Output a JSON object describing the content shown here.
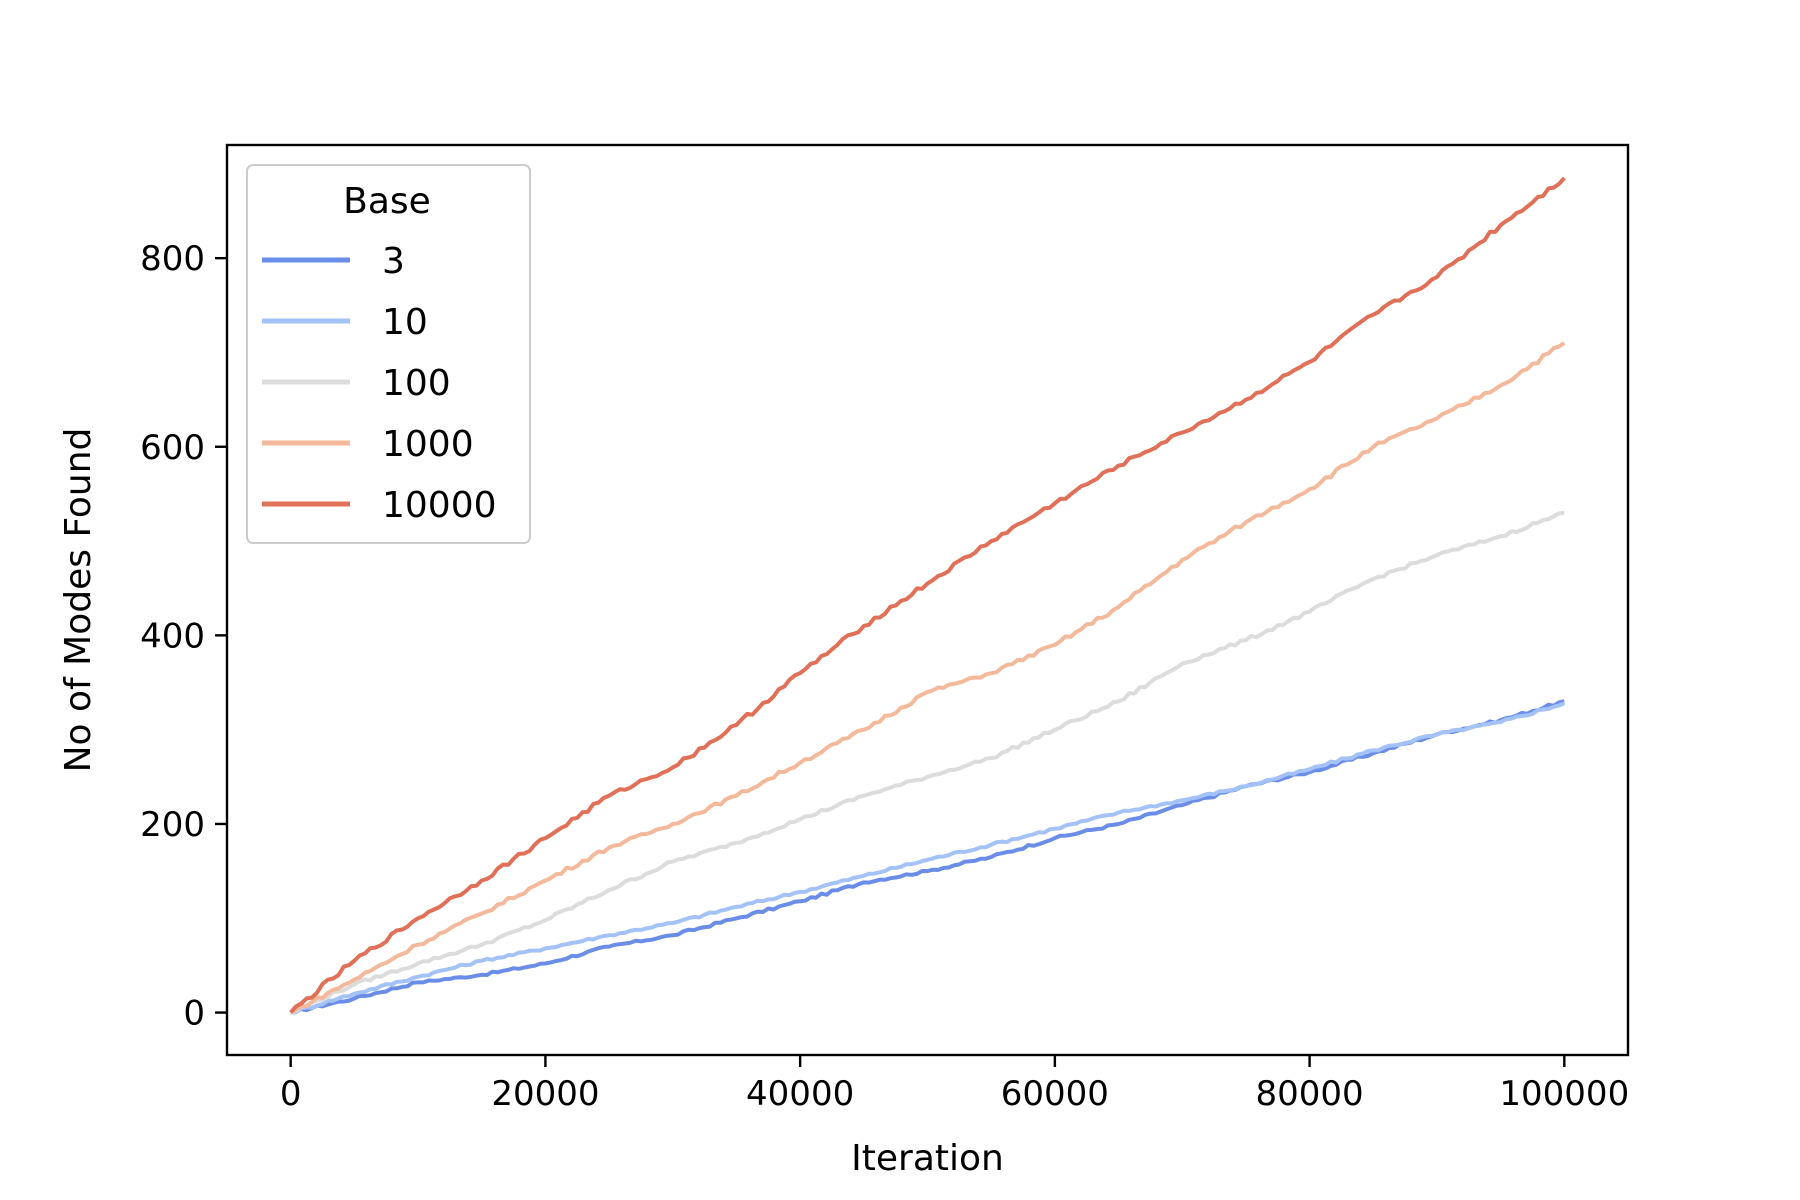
{
  "chart_data": {
    "type": "line",
    "title": "",
    "xlabel": "Iteration",
    "ylabel": "No of Modes Found",
    "xlim": [
      -5000,
      105000
    ],
    "ylim": [
      -45,
      920
    ],
    "xticks": [
      0,
      20000,
      40000,
      60000,
      80000,
      100000
    ],
    "yticks": [
      0,
      200,
      400,
      600,
      800
    ],
    "grid": false,
    "legend": {
      "title": "Base",
      "placement": "top-left"
    },
    "series": [
      {
        "name": "3",
        "color": "#6a8ee8",
        "x": [
          0,
          5000,
          10000,
          15000,
          20000,
          25000,
          30000,
          35000,
          40000,
          45000,
          50000,
          55000,
          60000,
          65000,
          70000,
          75000,
          80000,
          85000,
          90000,
          95000,
          100000
        ],
        "y": [
          0,
          15,
          32,
          40,
          52,
          70,
          82,
          100,
          118,
          138,
          150,
          165,
          185,
          200,
          220,
          240,
          255,
          275,
          295,
          310,
          330
        ]
      },
      {
        "name": "10",
        "color": "#a3c2f7",
        "x": [
          0,
          5000,
          10000,
          15000,
          20000,
          25000,
          30000,
          35000,
          40000,
          45000,
          50000,
          55000,
          60000,
          65000,
          70000,
          75000,
          80000,
          85000,
          90000,
          95000,
          100000
        ],
        "y": [
          0,
          20,
          38,
          55,
          68,
          82,
          95,
          112,
          128,
          145,
          162,
          178,
          195,
          212,
          225,
          240,
          258,
          278,
          295,
          308,
          328
        ]
      },
      {
        "name": "100",
        "color": "#dcdcdc",
        "x": [
          0,
          5000,
          10000,
          15000,
          20000,
          25000,
          30000,
          35000,
          40000,
          45000,
          50000,
          55000,
          60000,
          65000,
          70000,
          75000,
          80000,
          85000,
          90000,
          95000,
          100000
        ],
        "y": [
          0,
          30,
          52,
          72,
          98,
          130,
          160,
          180,
          205,
          230,
          250,
          270,
          300,
          330,
          370,
          395,
          425,
          460,
          485,
          505,
          530
        ]
      },
      {
        "name": "1000",
        "color": "#f4b99b",
        "x": [
          0,
          5000,
          10000,
          15000,
          20000,
          25000,
          30000,
          35000,
          40000,
          45000,
          50000,
          55000,
          60000,
          65000,
          70000,
          75000,
          80000,
          85000,
          90000,
          95000,
          100000
        ],
        "y": [
          0,
          35,
          72,
          105,
          140,
          175,
          200,
          230,
          265,
          300,
          340,
          360,
          390,
          430,
          480,
          520,
          555,
          600,
          630,
          665,
          710
        ]
      },
      {
        "name": "10000",
        "color": "#e07057",
        "x": [
          0,
          5000,
          10000,
          15000,
          20000,
          25000,
          30000,
          35000,
          40000,
          45000,
          50000,
          55000,
          60000,
          65000,
          70000,
          75000,
          80000,
          85000,
          90000,
          95000,
          100000
        ],
        "y": [
          0,
          55,
          100,
          140,
          185,
          230,
          260,
          305,
          360,
          410,
          455,
          500,
          540,
          580,
          615,
          650,
          690,
          740,
          780,
          835,
          885
        ]
      }
    ]
  }
}
